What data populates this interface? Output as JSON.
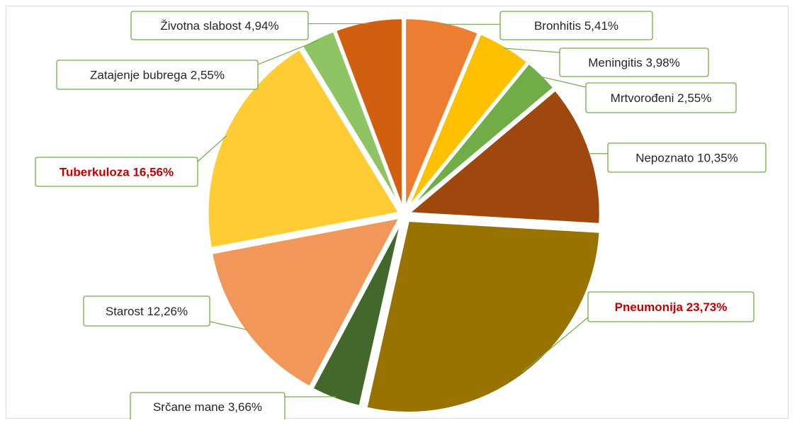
{
  "chart_data": {
    "type": "pie",
    "title": "",
    "legend": "none",
    "slices": [
      {
        "label": "Bronhitis",
        "value_text": "5,41%",
        "value": 5.41,
        "color": "#ed7d31",
        "highlight": false
      },
      {
        "label": "Meningitis",
        "value_text": "3,98%",
        "value": 3.98,
        "color": "#ffc000",
        "highlight": false
      },
      {
        "label": "Mrtvorođeni",
        "value_text": "2,55%",
        "value": 2.55,
        "color": "#70ad47",
        "highlight": false
      },
      {
        "label": "Nepoznato",
        "value_text": "10,35%",
        "value": 10.35,
        "color": "#9e480e",
        "highlight": false
      },
      {
        "label": "Pneumonija",
        "value_text": "23,73%",
        "value": 23.73,
        "color": "#997300",
        "highlight": true
      },
      {
        "label": "Srčane mane",
        "value_text": "3,66%",
        "value": 3.66,
        "color": "#43682b",
        "highlight": false
      },
      {
        "label": "Starost",
        "value_text": "12,26%",
        "value": 12.26,
        "color": "#f1975a",
        "highlight": false
      },
      {
        "label": "Tuberkuloza",
        "value_text": "16,56%",
        "value": 16.56,
        "color": "#ffcd33",
        "highlight": true
      },
      {
        "label": "Zatajenje bubrega",
        "value_text": "2,55%",
        "value": 2.55,
        "color": "#8fc465",
        "highlight": false
      },
      {
        "label": "Životna slabost",
        "value_text": "4,94%",
        "value": 4.94,
        "color": "#d06010",
        "highlight": false
      }
    ]
  }
}
